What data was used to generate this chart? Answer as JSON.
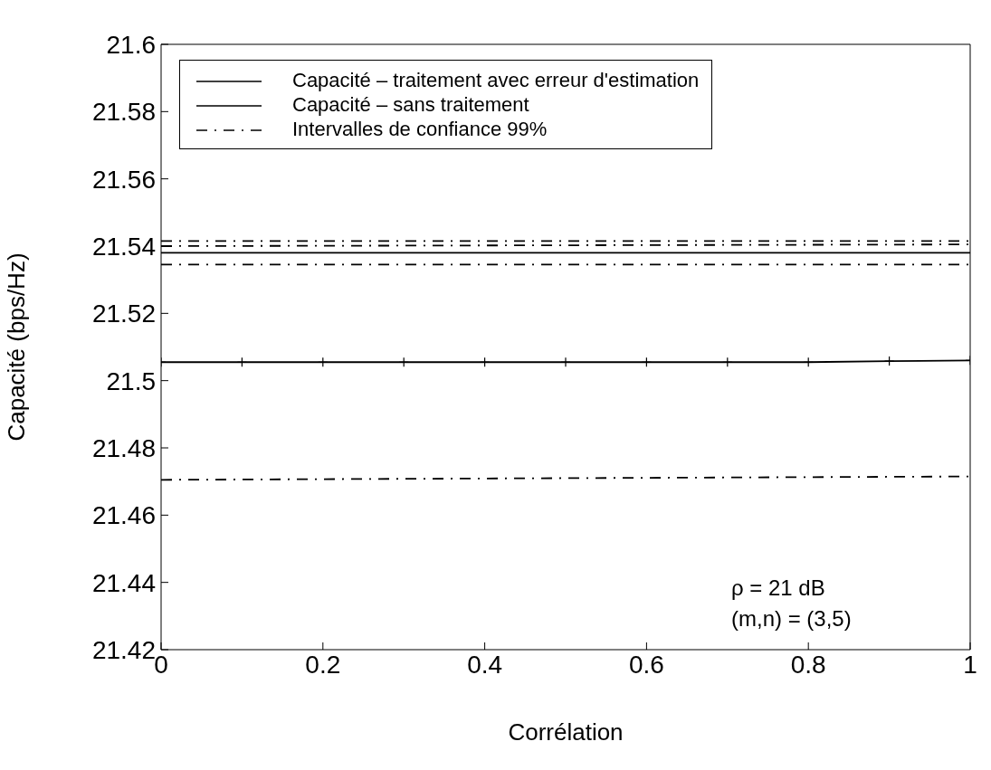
{
  "chart_data": {
    "type": "line",
    "xlabel": "Corrélation",
    "ylabel": "Capacité (bps/Hz)",
    "xlim": [
      0,
      1
    ],
    "xticks": [
      0,
      0.2,
      0.4,
      0.6,
      0.8,
      1
    ],
    "ylim": [
      21.42,
      21.6
    ],
    "yticks": [
      21.42,
      21.44,
      21.46,
      21.48,
      21.5,
      21.52,
      21.54,
      21.56,
      21.58,
      21.6
    ],
    "legend": "top",
    "annotations": [
      "ρ = 21 dB",
      "(m,n) = (3,5)"
    ],
    "series": [
      {
        "name": "Capacité – traitement avec erreur d'estimation",
        "color": "#000000",
        "marker": "cross",
        "line_style": "solid",
        "x": [
          0,
          0.1,
          0.2,
          0.3,
          0.4,
          0.5,
          0.6,
          0.7,
          0.8,
          0.9,
          1
        ],
        "values": [
          21.5055,
          21.5055,
          21.5055,
          21.5055,
          21.5055,
          21.5055,
          21.5055,
          21.5055,
          21.5055,
          21.5058,
          21.506
        ]
      },
      {
        "name": "Capacité – sans traitement",
        "color": "#000000",
        "marker": "none",
        "line_style": "solid",
        "x": [
          0,
          1
        ],
        "values": [
          21.538,
          21.538
        ]
      },
      {
        "name": "Intervalles de confiance 99%",
        "color": "#000000",
        "marker": "none",
        "line_style": "dashed",
        "x": [
          0,
          1
        ],
        "values": [
          21.5415,
          21.5415
        ]
      },
      {
        "color": "#000000",
        "marker": "none",
        "line_style": "dashed",
        "x": [
          0,
          1
        ],
        "values": [
          21.5345,
          21.5345
        ]
      },
      {
        "color": "#000000",
        "marker": "none",
        "line_style": "dashed",
        "x": [
          0,
          1
        ],
        "values": [
          21.54,
          21.5405
        ]
      },
      {
        "color": "#000000",
        "marker": "none",
        "line_style": "dashed",
        "x": [
          0,
          1
        ],
        "values": [
          21.4705,
          21.4715
        ]
      }
    ]
  }
}
